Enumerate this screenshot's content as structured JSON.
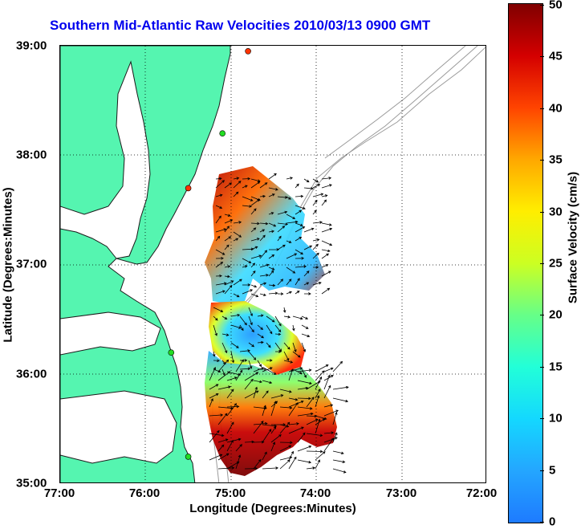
{
  "map": {
    "title": "Southern Mid-Atlantic Raw Velocities 2010/03/13 0900 GMT",
    "xlabel": "Longitude (Degrees:Minutes)",
    "ylabel": "Latitude (Degrees:Minutes)",
    "x_ticks": [
      "77:00",
      "76:00",
      "75:00",
      "74:00",
      "73:00",
      "72:00"
    ],
    "y_ticks": [
      "39:00",
      "38:00",
      "37:00",
      "36:00",
      "35:00"
    ],
    "lon_range": [
      -77.0,
      -72.0
    ],
    "lat_range": [
      35.0,
      39.0
    ],
    "grid": "dotted",
    "colors": {
      "land": "#55f5b0",
      "title": "#0000ee",
      "bathymetry": "#9a9a9a",
      "station": "#22dd22",
      "station_active": "#ff3300"
    }
  },
  "colorbar": {
    "label": "Surface Velocity (cm/s)",
    "ticks": [
      "50",
      "45",
      "40",
      "35",
      "30",
      "25",
      "20",
      "15",
      "10",
      "5",
      "0"
    ],
    "range": [
      0,
      50
    ],
    "colormap": "jet"
  },
  "stations": [
    {
      "lon": -74.8,
      "lat": 38.95,
      "status": "active"
    },
    {
      "lon": -75.1,
      "lat": 38.2,
      "status": "normal"
    },
    {
      "lon": -75.5,
      "lat": 37.7,
      "status": "active"
    },
    {
      "lon": -75.7,
      "lat": 36.2,
      "status": "normal"
    },
    {
      "lon": -75.5,
      "lat": 35.25,
      "status": "normal"
    }
  ]
}
